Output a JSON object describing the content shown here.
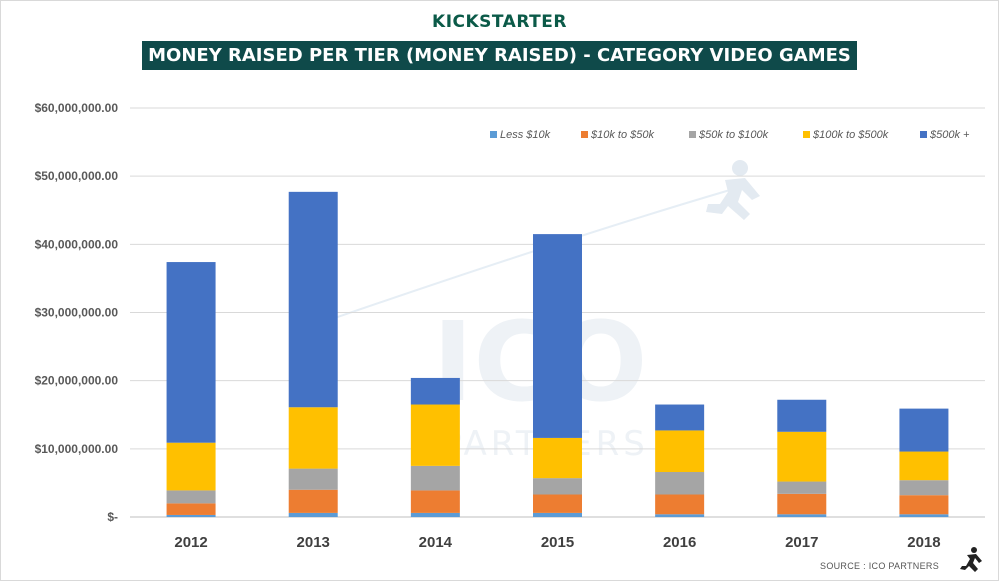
{
  "brand": "KICKSTARTER",
  "header_title": "MONEY RAISED PER TIER (MONEY RAISED) - CATEGORY VIDEO GAMES",
  "source_label": "SOURCE : ICO PARTNERS",
  "watermark": {
    "big": "ICO",
    "small": "PARTNERS"
  },
  "colors": {
    "Less $10k": "#5b9bd5",
    "$10k to $50k": "#ed7d31",
    "$50k to $100k": "#a5a5a5",
    "$100k to $500k": "#ffc000",
    "$500k +": "#4472c4",
    "title_bg": "#0f4a4a",
    "brand": "#0b5a48"
  },
  "chart_data": {
    "type": "bar",
    "stacked": true,
    "title": "MONEY RAISED PER TIER (MONEY RAISED) - CATEGORY VIDEO GAMES",
    "xlabel": "",
    "ylabel": "",
    "ylim": [
      0,
      60000000
    ],
    "yticks": [
      0,
      10000000,
      20000000,
      30000000,
      40000000,
      50000000,
      60000000
    ],
    "ytick_labels": [
      "$-",
      "$10,000,000.00",
      "$20,000,000.00",
      "$30,000,000.00",
      "$40,000,000.00",
      "$50,000,000.00",
      "$60,000,000.00"
    ],
    "legend_position": "top-right",
    "categories": [
      "2012",
      "2013",
      "2014",
      "2015",
      "2016",
      "2017",
      "2018"
    ],
    "series": [
      {
        "name": "Less $10k",
        "values": [
          300000,
          600000,
          600000,
          600000,
          400000,
          400000,
          400000
        ]
      },
      {
        "name": "$10k to $50k",
        "values": [
          1700000,
          3400000,
          3300000,
          2700000,
          2900000,
          3000000,
          2800000
        ]
      },
      {
        "name": "$50k to $100k",
        "values": [
          1900000,
          3100000,
          3600000,
          2400000,
          3300000,
          1800000,
          2200000
        ]
      },
      {
        "name": "$100k to $500k",
        "values": [
          7000000,
          9000000,
          9000000,
          5900000,
          6100000,
          7300000,
          4200000
        ]
      },
      {
        "name": "$500k +",
        "values": [
          26500000,
          31600000,
          3900000,
          29900000,
          3800000,
          4700000,
          6300000
        ]
      }
    ]
  }
}
